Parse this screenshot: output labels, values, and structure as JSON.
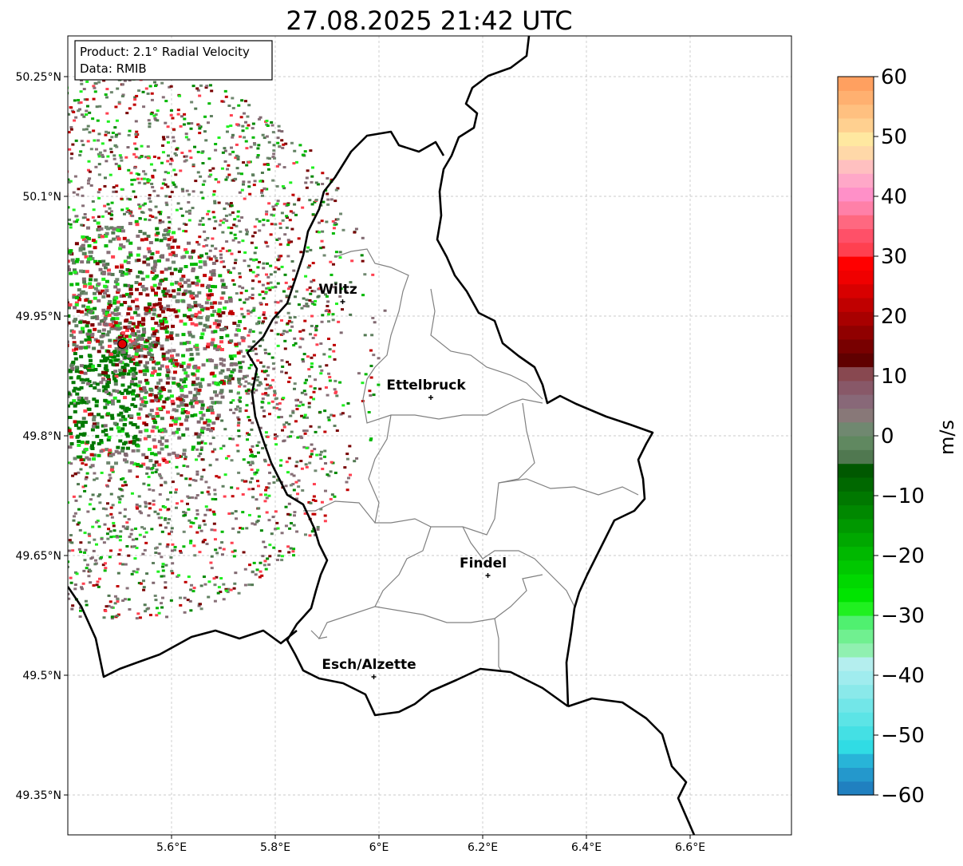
{
  "title": "27.08.2025 21:42 UTC",
  "info_box": {
    "line1": "Product: 2.1° Radial Velocity",
    "line2": "Data: RMIB"
  },
  "map": {
    "lon_ticks": [
      {
        "value": 5.6,
        "label": "5.6°E"
      },
      {
        "value": 5.8,
        "label": "5.8°E"
      },
      {
        "value": 6.0,
        "label": "6°E"
      },
      {
        "value": 6.2,
        "label": "6.2°E"
      },
      {
        "value": 6.4,
        "label": "6.4°E"
      },
      {
        "value": 6.6,
        "label": "6.6°E"
      }
    ],
    "lat_ticks": [
      {
        "value": 50.25,
        "label": "50.25°N"
      },
      {
        "value": 50.1,
        "label": "50.1°N"
      },
      {
        "value": 49.95,
        "label": "49.95°N"
      },
      {
        "value": 49.8,
        "label": "49.8°N"
      },
      {
        "value": 49.65,
        "label": "49.65°N"
      },
      {
        "value": 49.5,
        "label": "49.5°N"
      },
      {
        "value": 49.35,
        "label": "49.35°N"
      }
    ],
    "cities": [
      {
        "name": "Wiltz",
        "lon": 5.93,
        "lat": 49.968
      },
      {
        "name": "Ettelbruck",
        "lon": 6.1,
        "lat": 49.848
      },
      {
        "name": "Findel",
        "lon": 6.21,
        "lat": 49.625
      },
      {
        "name": "Esch/Alzette",
        "lon": 5.99,
        "lat": 49.498
      }
    ],
    "radar_site": {
      "lon": 5.505,
      "lat": 49.915
    }
  },
  "colorbar": {
    "label": "m/s",
    "min": -60,
    "max": 60,
    "ticks": [
      "60",
      "50",
      "40",
      "30",
      "20",
      "10",
      "0",
      "−10",
      "−20",
      "−30",
      "−40",
      "−50",
      "−60"
    ],
    "colors": [
      "#2080c0",
      "#2498cc",
      "#28b4d8",
      "#30dce4",
      "#44e0e4",
      "#5ce4e6",
      "#72e6e8",
      "#8ae9ea",
      "#a0ecee",
      "#b4eeee",
      "#90f0b0",
      "#70f090",
      "#50f070",
      "#20f020",
      "#00e400",
      "#00d800",
      "#00c800",
      "#00b800",
      "#00a800",
      "#009800",
      "#008800",
      "#007800",
      "#006800",
      "#005800",
      "#507850",
      "#608860",
      "#708870",
      "#887878",
      "#886878",
      "#885868",
      "#884850",
      "#600000",
      "#780000",
      "#900000",
      "#a80000",
      "#c00000",
      "#d80000",
      "#f00000",
      "#ff0000",
      "#ff4050",
      "#ff5068",
      "#ff6880",
      "#ff80a8",
      "#ff90c8",
      "#ffa8c8",
      "#ffc0c0",
      "#ffd8a8",
      "#ffe8a0",
      "#ffd090",
      "#ffc080",
      "#ffb070",
      "#ffa060"
    ]
  }
}
